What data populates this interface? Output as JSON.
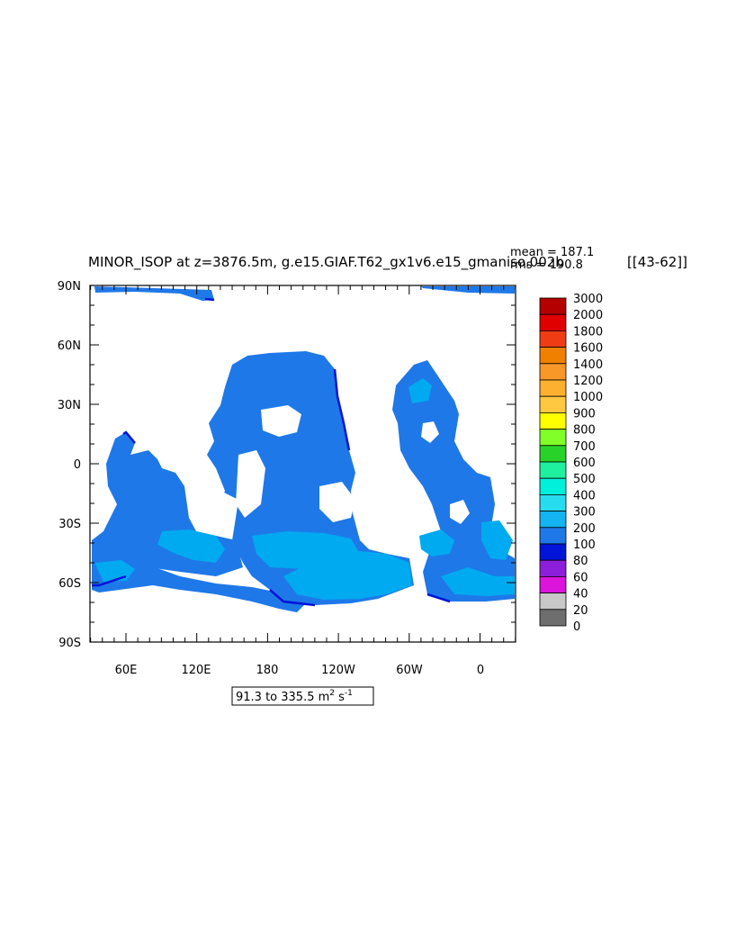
{
  "figure": {
    "title": "MINOR_ISOP at z=3876.5m, g.e15.GIAF.T62_gx1v6.e15_gmaniso.002b",
    "period_label": "[[43-62]]",
    "stats": {
      "mean_label": "mean = 187.1",
      "rms_label": "rms = 190.8"
    },
    "range_box": {
      "text": "91.3 to 335.5 m",
      "exp_2": "2",
      "unit_s": " s",
      "exp_m1": "-1"
    }
  },
  "map": {
    "lat_ticks": [
      "90N",
      "60N",
      "30N",
      "0",
      "30S",
      "60S",
      "90S"
    ],
    "lon_ticks": [
      "60E",
      "120E",
      "180",
      "120W",
      "60W",
      "0"
    ],
    "ocean_color": "#1E78E8",
    "light_color": "#00AAF0",
    "coast_color": "#0014D8"
  },
  "colorbar": {
    "labels": [
      "3000",
      "2000",
      "1800",
      "1600",
      "1400",
      "1200",
      "1000",
      "900",
      "800",
      "700",
      "600",
      "500",
      "400",
      "300",
      "200",
      "100",
      "80",
      "60",
      "40",
      "20",
      "0"
    ],
    "colors": [
      "#B40000",
      "#E00000",
      "#F03C14",
      "#F08000",
      "#F89828",
      "#FDB030",
      "#FFC840",
      "#FFFF00",
      "#80FF28",
      "#28D228",
      "#1EF0A0",
      "#00F0DC",
      "#28DCF0",
      "#14B4F0",
      "#1E78E8",
      "#0014D8",
      "#8C1EDC",
      "#DC14DC",
      "#C8C8C8",
      "#6E6E6E"
    ]
  }
}
